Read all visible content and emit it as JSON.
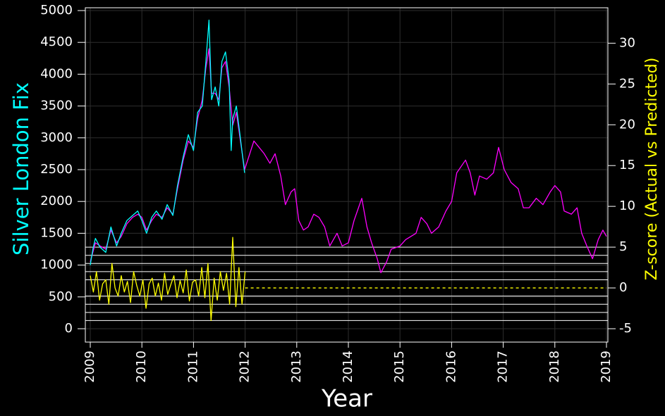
{
  "chart_data": {
    "type": "line",
    "ylabel": "Silver London Fix",
    "y2label": "Z-score (Actual vs Predicted)",
    "xlabel": "Year",
    "xlim": [
      2009,
      2019
    ],
    "xticks": [
      2009,
      2010,
      2011,
      2012,
      2013,
      2014,
      2015,
      2016,
      2017,
      2018,
      2019
    ],
    "ylim": [
      0,
      5000
    ],
    "yticks": [
      0,
      500,
      1000,
      1500,
      2000,
      2500,
      3000,
      3500,
      4000,
      4500,
      5000
    ],
    "y2lim": [
      -5,
      34
    ],
    "y2ticks": [
      -5,
      0,
      5,
      10,
      15,
      20,
      25,
      30
    ],
    "y2_reference_lines": [
      -4,
      -3,
      -2,
      -1,
      1,
      2,
      3,
      4,
      5
    ],
    "grid": true,
    "series": [
      {
        "color": "#ff00ff",
        "x": [
          2009.0,
          2009.1,
          2009.19,
          2009.3,
          2009.4,
          2009.51,
          2009.6,
          2009.71,
          2009.82,
          2009.92,
          2010.0,
          2010.09,
          2010.19,
          2010.28,
          2010.39,
          2010.49,
          2010.6,
          2010.69,
          2010.8,
          2010.9,
          2011.0,
          2011.08,
          2011.17,
          2011.24,
          2011.3,
          2011.35,
          2011.42,
          2011.49,
          2011.55,
          2011.62,
          2011.69,
          2011.76,
          2011.83,
          2011.9,
          2011.99,
          2012.17,
          2012.37,
          2012.48,
          2012.58,
          2012.69,
          2012.78,
          2012.89,
          2012.96,
          2013.04,
          2013.13,
          2013.22,
          2013.33,
          2013.43,
          2013.54,
          2013.64,
          2013.78,
          2013.88,
          2014.0,
          2014.11,
          2014.26,
          2014.36,
          2014.45,
          2014.56,
          2014.63,
          2014.74,
          2014.83,
          2015.0,
          2015.11,
          2015.31,
          2015.41,
          2015.52,
          2015.61,
          2015.75,
          2015.89,
          2016.0,
          2016.1,
          2016.27,
          2016.36,
          2016.45,
          2016.54,
          2016.68,
          2016.81,
          2016.91,
          2017.02,
          2017.15,
          2017.29,
          2017.39,
          2017.5,
          2017.64,
          2017.77,
          2017.91,
          2018.0,
          2018.11,
          2018.18,
          2018.32,
          2018.43,
          2018.52,
          2018.62,
          2018.73,
          2018.84,
          2018.93,
          2019.0
        ],
        "values": [
          1050,
          1350,
          1300,
          1250,
          1550,
          1350,
          1450,
          1650,
          1750,
          1800,
          1750,
          1550,
          1700,
          1800,
          1750,
          1900,
          1800,
          2200,
          2650,
          2950,
          2850,
          3300,
          3600,
          4100,
          4400,
          3700,
          3700,
          3600,
          4100,
          4200,
          3800,
          3200,
          3400,
          3000,
          2500,
          2950,
          2750,
          2600,
          2750,
          2400,
          1950,
          2150,
          2200,
          1700,
          1550,
          1600,
          1800,
          1750,
          1600,
          1300,
          1500,
          1300,
          1350,
          1700,
          2050,
          1600,
          1350,
          1100,
          880,
          1050,
          1250,
          1300,
          1400,
          1500,
          1750,
          1650,
          1500,
          1600,
          1850,
          2000,
          2450,
          2650,
          2450,
          2100,
          2400,
          2350,
          2450,
          2850,
          2500,
          2300,
          2200,
          1900,
          1900,
          2050,
          1950,
          2150,
          2250,
          2150,
          1850,
          1800,
          1900,
          1500,
          1300,
          1100,
          1400,
          1550,
          1450
        ]
      },
      {
        "color": "#00ffff",
        "x": [
          2009.0,
          2009.05,
          2009.1,
          2009.19,
          2009.3,
          2009.4,
          2009.51,
          2009.6,
          2009.71,
          2009.82,
          2009.92,
          2010.0,
          2010.09,
          2010.19,
          2010.28,
          2010.39,
          2010.49,
          2010.6,
          2010.69,
          2010.8,
          2010.9,
          2011.0,
          2011.08,
          2011.17,
          2011.24,
          2011.3,
          2011.35,
          2011.42,
          2011.49,
          2011.55,
          2011.62,
          2011.69,
          2011.73,
          2011.76,
          2011.83,
          2011.9,
          2011.99
        ],
        "values": [
          1000,
          1250,
          1420,
          1280,
          1200,
          1600,
          1300,
          1500,
          1700,
          1780,
          1850,
          1700,
          1500,
          1750,
          1850,
          1720,
          1950,
          1780,
          2250,
          2700,
          3050,
          2800,
          3400,
          3500,
          4200,
          4850,
          3600,
          3800,
          3500,
          4200,
          4350,
          3900,
          2800,
          3300,
          3500,
          3050,
          2450
        ]
      },
      {
        "color": "#ffff00",
        "x": [
          2009.0,
          2009.06,
          2009.12,
          2009.18,
          2009.24,
          2009.3,
          2009.36,
          2009.42,
          2009.48,
          2009.54,
          2009.6,
          2009.66,
          2009.72,
          2009.78,
          2009.84,
          2009.9,
          2009.96,
          2010.02,
          2010.08,
          2010.14,
          2010.2,
          2010.26,
          2010.32,
          2010.38,
          2010.44,
          2010.5,
          2010.56,
          2010.62,
          2010.68,
          2010.74,
          2010.8,
          2010.86,
          2010.92,
          2010.98,
          2011.04,
          2011.1,
          2011.16,
          2011.22,
          2011.28,
          2011.34,
          2011.4,
          2011.46,
          2011.52,
          2011.58,
          2011.64,
          2011.7,
          2011.76,
          2011.82,
          2011.88,
          2011.94,
          2012.0
        ],
        "values": [
          1.5,
          -0.5,
          2,
          -1.5,
          0.5,
          1,
          -2,
          3,
          0,
          -1,
          1.5,
          -0.5,
          0.8,
          -1.8,
          2,
          0.3,
          -1,
          1,
          -2.5,
          0.5,
          1.2,
          -1,
          0.6,
          -1.5,
          1.8,
          -0.8,
          0.4,
          1.5,
          -1.2,
          0.9,
          -0.6,
          2.2,
          -1.6,
          0.7,
          1,
          -1,
          2.5,
          -1.2,
          3,
          -4,
          1.2,
          -1.5,
          2,
          -0.3,
          1.8,
          -2,
          6.2,
          -2.3,
          2.5,
          -2,
          2
        ],
        "axis": "y2"
      },
      {
        "color": "#ffff00",
        "dashed": true,
        "x": [
          2012,
          2019
        ],
        "values": [
          0,
          0
        ],
        "axis": "y2"
      }
    ]
  }
}
